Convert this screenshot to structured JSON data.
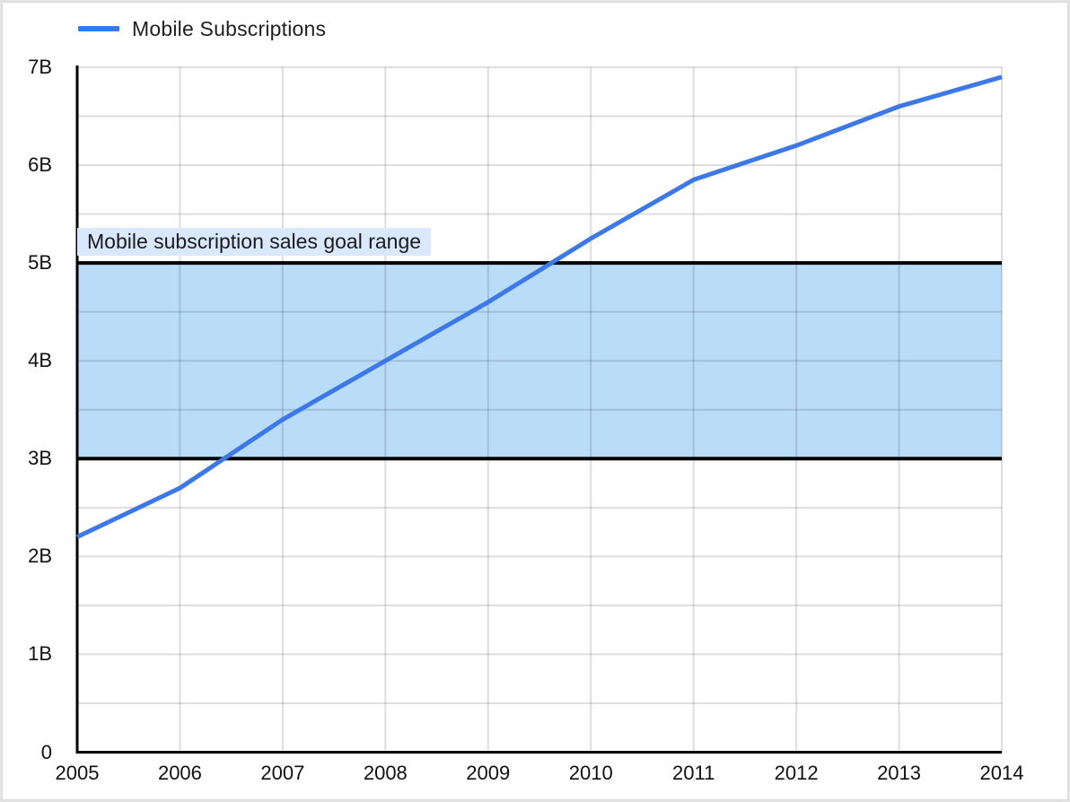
{
  "colors": {
    "line": "#3c78e8",
    "band_fill": "#b9dcf8",
    "band_border": "#000000",
    "grid": "rgba(0,0,0,0.13)",
    "axis": "#000000",
    "label_bg": "#d9e8fc",
    "text": "#1f1f1f",
    "background": "#ffffff"
  },
  "legend": {
    "position": "top-left",
    "entries": [
      "Mobile Subscriptions"
    ]
  },
  "chart_data": {
    "type": "line",
    "title": "",
    "x": [
      2005,
      2006,
      2007,
      2008,
      2009,
      2010,
      2011,
      2012,
      2013,
      2014
    ],
    "x_tick_labels": [
      "2005",
      "2006",
      "2007",
      "2008",
      "2009",
      "2010",
      "2011",
      "2012",
      "2013",
      "2014"
    ],
    "series": [
      {
        "name": "Mobile Subscriptions",
        "values": [
          2.2,
          2.7,
          3.4,
          4.0,
          4.6,
          5.25,
          5.85,
          6.2,
          6.6,
          6.9
        ],
        "unit": "billions"
      }
    ],
    "ylim": [
      0,
      7
    ],
    "y_tick_labels": [
      "0",
      "1B",
      "2B",
      "3B",
      "4B",
      "5B",
      "6B",
      "7B"
    ],
    "y_grid_step": 0.5,
    "x_grid_step_years": 1,
    "grid": true,
    "legend_position": "top-left",
    "annotation_band": {
      "label": "Mobile subscription sales goal range",
      "y_from": 3,
      "y_to": 5
    }
  }
}
